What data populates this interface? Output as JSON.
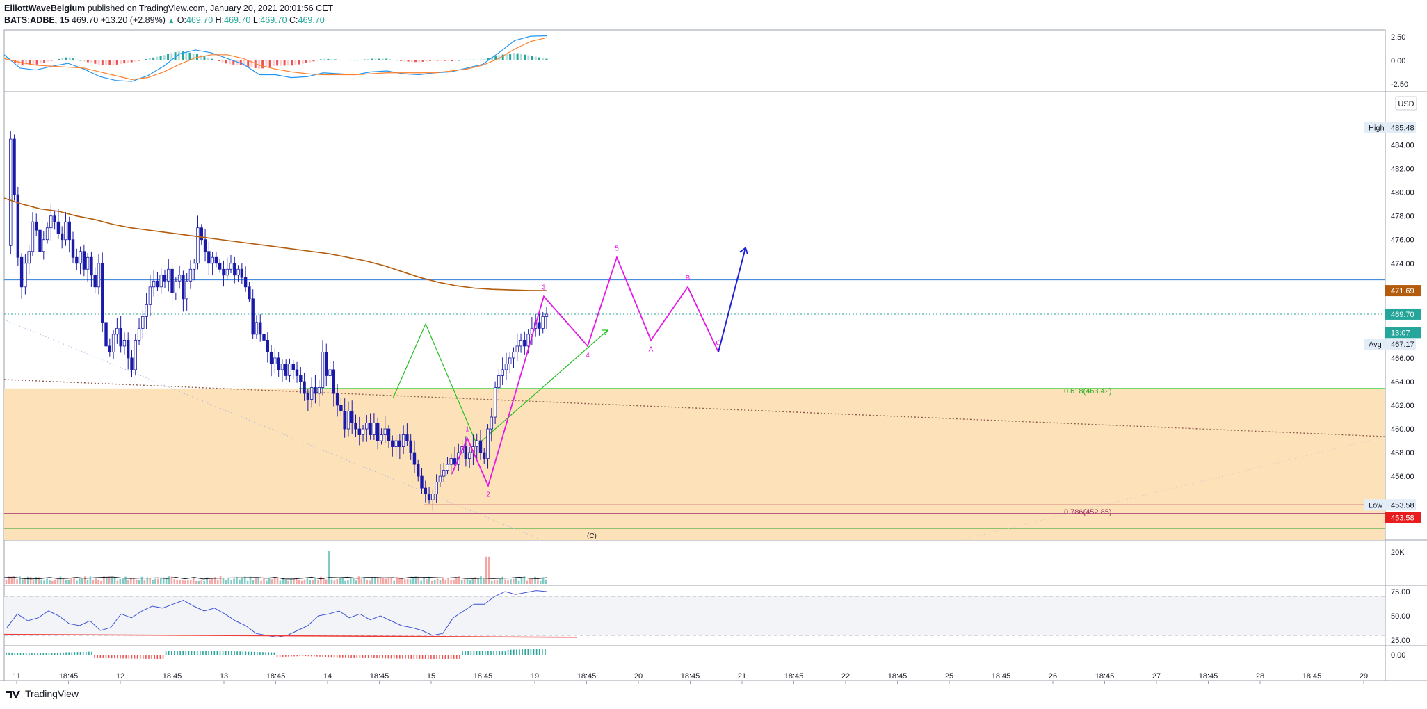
{
  "header": {
    "author": "ElliottWaveBelgium",
    "published_text": "published on TradingView.com, January 20, 2021 20:01:56 CET",
    "symbol": "BATS:ADBE, 15",
    "price": "469.70",
    "change": "+13.20 (+2.89%)",
    "o_label": "O:",
    "o_value": "469.70",
    "h_label": "H:",
    "h_value": "469.70",
    "l_label": "L:",
    "l_value": "469.70",
    "c_label": "C:",
    "c_value": "469.70"
  },
  "footer": {
    "brand": "TradingView"
  },
  "colors": {
    "candle": "#1a1aa8",
    "vwap": "#b35c0d",
    "zone": "#fde1b8",
    "wave": "#e616e6",
    "blue_arrow": "#1e22d6",
    "green": "#22c022",
    "macd_line": "#2196f3",
    "signal_line": "#ff7f2a",
    "rsi_line": "#3f51d8",
    "up": "#26a69a",
    "down": "#ef5350"
  },
  "chart_data": {
    "type": "candlestick",
    "currency": "USD",
    "x_tick_labels": [
      "11",
      "18:45",
      "12",
      "18:45",
      "13",
      "18:45",
      "14",
      "18:45",
      "15",
      "18:45",
      "19",
      "18:45",
      "20",
      "18:45",
      "21",
      "18:45",
      "22",
      "18:45",
      "25",
      "18:45",
      "26",
      "18:45",
      "27",
      "18:45",
      "28",
      "18:45",
      "29"
    ],
    "price_range": [
      450.6,
      488.5
    ],
    "price_axis_ticks": [
      "484.00",
      "482.00",
      "480.00",
      "478.00",
      "476.00",
      "474.00",
      "466.00",
      "464.00",
      "462.00",
      "460.00",
      "458.00",
      "456.00"
    ],
    "price_axis_labels": [
      {
        "text": "High",
        "value": "485.48",
        "price": 485.48
      },
      {
        "text": "",
        "value": "471.69",
        "price": 471.69
      },
      {
        "text": "",
        "value": "469.70",
        "price": 469.7
      },
      {
        "text": "",
        "value": "13:07",
        "price": 468.15
      },
      {
        "text": "Avg",
        "value": "467.17",
        "price": 467.17
      },
      {
        "text": "Low",
        "value": "453.58",
        "price": 453.58
      },
      {
        "text": "",
        "value": "453.58",
        "price": 452.5
      }
    ],
    "candles_path": [
      475.5,
      484.5,
      479.8,
      474.5,
      472.0,
      474.0,
      475.0,
      477.5,
      476.8,
      475.0,
      476.0,
      477.0,
      478.0,
      477.5,
      476.5,
      476.0,
      477.5,
      476.0,
      474.5,
      474.0,
      475.0,
      473.5,
      474.5,
      473.0,
      472.0,
      474.0,
      469.0,
      467.0,
      466.5,
      468.0,
      468.5,
      467.0,
      467.5,
      466.0,
      465.0,
      467.5,
      468.5,
      469.5,
      470.5,
      472.0,
      472.5,
      472.0,
      473.0,
      472.5,
      473.5,
      471.5,
      472.5,
      473.0,
      471.0,
      472.5,
      473.5,
      474.0,
      477.0,
      476.0,
      475.0,
      474.0,
      474.5,
      474.0,
      473.5,
      473.0,
      473.5,
      474.0,
      473.0,
      473.5,
      472.8,
      472.0,
      471.0,
      468.0,
      469.0,
      468.0,
      467.5,
      466.5,
      465.5,
      466.0,
      465.0,
      465.5,
      464.5,
      465.5,
      465.0,
      464.5,
      464.0,
      463.0,
      462.5,
      463.5,
      463.0,
      463.5,
      466.5,
      464.5,
      465.0,
      463.0,
      462.0,
      461.5,
      460.0,
      461.5,
      460.5,
      460.0,
      459.5,
      460.0,
      460.5,
      459.5,
      460.5,
      459.0,
      459.5,
      460.0,
      459.0,
      458.5,
      459.0,
      458.5,
      459.5,
      459.0,
      458.0,
      457.0,
      456.0,
      455.0,
      454.5,
      454.0,
      454.5,
      455.5,
      456.0,
      456.5,
      457.0,
      457.5,
      457.0,
      458.0,
      458.5,
      457.5,
      458.0,
      458.5,
      459.0,
      458.0,
      457.5,
      460.0,
      461.0,
      463.5,
      464.5,
      465.0,
      465.5,
      466.0,
      466.5,
      467.0,
      467.5,
      467.0,
      468.0,
      468.5,
      469.0,
      468.5,
      469.5,
      469.7
    ],
    "candles_x_range": [
      6,
      786
    ],
    "vwap_path": [
      479.5,
      479.0,
      478.6,
      478.4,
      478.0,
      477.7,
      477.3,
      477.0,
      476.8,
      476.6,
      476.4,
      476.2,
      476.0,
      475.8,
      475.6,
      475.4,
      475.2,
      475.0,
      474.8,
      474.5,
      474.2,
      473.8,
      473.3,
      472.8,
      472.4,
      472.1,
      471.9,
      471.8,
      471.75,
      471.7,
      471.69
    ],
    "vwap_x_range": [
      6,
      786
    ],
    "horizontal_lines": [
      {
        "name": "resistance-line",
        "price": 472.6
      },
      {
        "name": "current-price-line",
        "price": 469.7
      },
      {
        "name": "fib-618-line",
        "price": 463.42,
        "label": "0.618(463.42)"
      },
      {
        "name": "low-line",
        "price": 453.58
      },
      {
        "name": "fib-786-line",
        "price": 452.85,
        "label": "0.786(452.85)"
      },
      {
        "name": "fib-bottom-line",
        "price": 451.6
      }
    ],
    "zone": {
      "top": 463.42,
      "bottom": 450.6
    },
    "wave_points": [
      {
        "label": "",
        "x_time": 650,
        "price": 456.2
      },
      {
        "label": "1",
        "x_time": 672,
        "price": 459.2
      },
      {
        "label": "2",
        "x_time": 702,
        "price": 455.2
      },
      {
        "label": "3",
        "x_time": 782,
        "price": 471.2
      },
      {
        "label": "4",
        "x_time": 845,
        "price": 467.0
      },
      {
        "label": "5",
        "x_time": 887,
        "price": 474.5
      },
      {
        "label": "A",
        "x_time": 936,
        "price": 467.5
      },
      {
        "label": "B",
        "x_time": 989,
        "price": 472.0
      },
      {
        "label": "C",
        "x_time": 1033,
        "price": 466.5
      }
    ],
    "blue_arrow": {
      "from": {
        "x_time": 1033,
        "price": 466.5
      },
      "to": {
        "x_time": 1072,
        "price": 475.3
      }
    },
    "annotation_c": "(C)",
    "macd": {
      "range": [
        -3.0,
        3.0
      ],
      "axis_labels": [
        "2.50",
        "0.00",
        "-2.50"
      ],
      "macd_line": [
        0.6,
        -0.8,
        -1.0,
        -0.6,
        -0.3,
        -0.9,
        -1.7,
        -2.1,
        -2.2,
        -1.6,
        -0.6,
        0.7,
        1.1,
        0.8,
        0.2,
        -0.4,
        -1.5,
        -1.5,
        -1.8,
        -1.7,
        -1.3,
        -1.4,
        -1.5,
        -1.2,
        -1.1,
        -1.4,
        -1.5,
        -1.3,
        -1.2,
        -0.8,
        -0.4,
        0.8,
        2.1,
        2.55,
        2.6
      ],
      "signal_line": [
        0.2,
        -0.2,
        -0.5,
        -0.6,
        -0.7,
        -0.8,
        -1.2,
        -1.6,
        -2.0,
        -1.8,
        -1.2,
        -0.4,
        0.3,
        0.6,
        0.6,
        0.2,
        -0.5,
        -0.9,
        -1.2,
        -1.4,
        -1.5,
        -1.5,
        -1.5,
        -1.4,
        -1.3,
        -1.3,
        -1.3,
        -1.3,
        -1.1,
        -0.9,
        -0.5,
        0.2,
        1.2,
        2.0,
        2.4
      ],
      "x_range": [
        6,
        786
      ]
    },
    "volume": {
      "axis_label": "20K",
      "spikes": [
        {
          "x_time": 473,
          "height": 0.85
        },
        {
          "x_time": 702,
          "height": 0.7
        }
      ]
    },
    "rsi": {
      "axis_labels": [
        "75.00",
        "50.00",
        "25.00"
      ],
      "upper": 70,
      "lower": 30,
      "values": [
        38,
        52,
        45,
        48,
        55,
        50,
        42,
        40,
        45,
        35,
        38,
        52,
        48,
        55,
        60,
        58,
        62,
        66,
        60,
        55,
        58,
        52,
        45,
        40,
        32,
        30,
        28,
        30,
        35,
        40,
        50,
        52,
        55,
        48,
        52,
        46,
        50,
        45,
        40,
        38,
        35,
        30,
        32,
        48,
        55,
        62,
        62,
        70,
        75,
        72,
        74,
        76,
        75
      ],
      "x_range": [
        6,
        786
      ]
    },
    "oscillator": {
      "axis_label": "0.00"
    }
  }
}
